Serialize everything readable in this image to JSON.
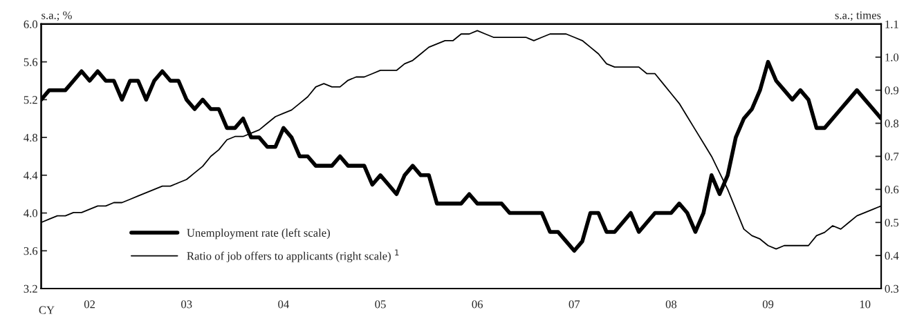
{
  "chart_data": {
    "type": "line",
    "xlabel": "CY",
    "ylabel": "s.a.; %",
    "y2label": "s.a.; times",
    "categories": [
      null,
      null,
      null,
      null,
      null,
      null,
      "02",
      null,
      null,
      null,
      null,
      null,
      null,
      null,
      null,
      null,
      null,
      null,
      "03",
      null,
      null,
      null,
      null,
      null,
      null,
      null,
      null,
      null,
      null,
      null,
      "04",
      null,
      null,
      null,
      null,
      null,
      null,
      null,
      null,
      null,
      null,
      null,
      "05",
      null,
      null,
      null,
      null,
      null,
      null,
      null,
      null,
      null,
      null,
      null,
      "06",
      null,
      null,
      null,
      null,
      null,
      null,
      null,
      null,
      null,
      null,
      null,
      "07",
      null,
      null,
      null,
      null,
      null,
      null,
      null,
      null,
      null,
      null,
      null,
      "08",
      null,
      null,
      null,
      null,
      null,
      null,
      null,
      null,
      null,
      null,
      null,
      "09",
      null,
      null,
      null,
      null,
      null,
      null,
      null,
      null,
      null,
      null,
      null,
      "10",
      null,
      null
    ],
    "series": [
      {
        "name": "Unemployment rate (left scale)",
        "color": "#000000",
        "axis": "y",
        "values": [
          5.2,
          5.3,
          5.3,
          5.3,
          5.4,
          5.5,
          5.4,
          5.5,
          5.4,
          5.4,
          5.2,
          5.4,
          5.4,
          5.2,
          5.4,
          5.5,
          5.4,
          5.4,
          5.2,
          5.1,
          5.2,
          5.1,
          5.1,
          4.9,
          4.9,
          5.0,
          4.8,
          4.8,
          4.7,
          4.7,
          4.9,
          4.8,
          4.6,
          4.6,
          4.5,
          4.5,
          4.5,
          4.6,
          4.5,
          4.5,
          4.5,
          4.3,
          4.4,
          4.3,
          4.2,
          4.4,
          4.5,
          4.4,
          4.4,
          4.1,
          4.1,
          4.1,
          4.1,
          4.2,
          4.1,
          4.1,
          4.1,
          4.1,
          4.0,
          4.0,
          4.0,
          4.0,
          4.0,
          3.8,
          3.8,
          3.7,
          3.6,
          3.7,
          4.0,
          4.0,
          3.8,
          3.8,
          3.9,
          4.0,
          3.8,
          3.9,
          4.0,
          4.0,
          4.0,
          4.1,
          4.0,
          3.8,
          4.0,
          4.4,
          4.2,
          4.4,
          4.8,
          5.0,
          5.1,
          5.3,
          5.6,
          5.4,
          5.3,
          5.2,
          5.3,
          5.2,
          4.9,
          4.9,
          5.0,
          5.1,
          5.2,
          5.3,
          5.2,
          5.1,
          5.0
        ]
      },
      {
        "name": "Ratio of job offers to applicants (right scale) $^{1}$",
        "color": "#000000",
        "axis": "y2",
        "values": [
          0.5,
          0.51,
          0.52,
          0.52,
          0.53,
          0.53,
          0.54,
          0.55,
          0.55,
          0.56,
          0.56,
          0.57,
          0.58,
          0.59,
          0.6,
          0.61,
          0.61,
          0.62,
          0.63,
          0.65,
          0.67,
          0.7,
          0.72,
          0.75,
          0.76,
          0.76,
          0.77,
          0.78,
          0.8,
          0.82,
          0.83,
          0.84,
          0.86,
          0.88,
          0.91,
          0.92,
          0.91,
          0.91,
          0.93,
          0.94,
          0.94,
          0.95,
          0.96,
          0.96,
          0.96,
          0.98,
          0.99,
          1.01,
          1.03,
          1.04,
          1.05,
          1.05,
          1.07,
          1.07,
          1.08,
          1.07,
          1.06,
          1.06,
          1.06,
          1.06,
          1.06,
          1.05,
          1.06,
          1.07,
          1.07,
          1.07,
          1.06,
          1.05,
          1.03,
          1.01,
          0.98,
          0.97,
          0.97,
          0.97,
          0.97,
          0.95,
          0.95,
          0.92,
          0.89,
          0.86,
          0.82,
          0.78,
          0.74,
          0.7,
          0.65,
          0.6,
          0.54,
          0.48,
          0.46,
          0.45,
          0.43,
          0.42,
          0.43,
          0.43,
          0.43,
          0.43,
          0.46,
          0.47,
          0.49,
          0.48,
          0.5,
          0.52,
          0.53,
          0.54,
          0.55
        ]
      }
    ],
    "ylim": [
      3.2,
      6.0
    ],
    "yticks": [
      3.2,
      3.6,
      {
        "value": 4,
        "label": "4.0"
      },
      4.4,
      4.8,
      5.2,
      5.6,
      {
        "value": 6,
        "label": "6.0"
      }
    ],
    "y2lim": [
      0.3,
      1.1
    ],
    "y2ticks": [
      0.3,
      0.4,
      0.5,
      0.6,
      0.7,
      0.8,
      0.9,
      {
        "value": 1,
        "label": "1.0"
      },
      1.1
    ],
    "grid": false,
    "legend": "bottom left",
    "marker": "none",
    "line_style": "solid"
  }
}
